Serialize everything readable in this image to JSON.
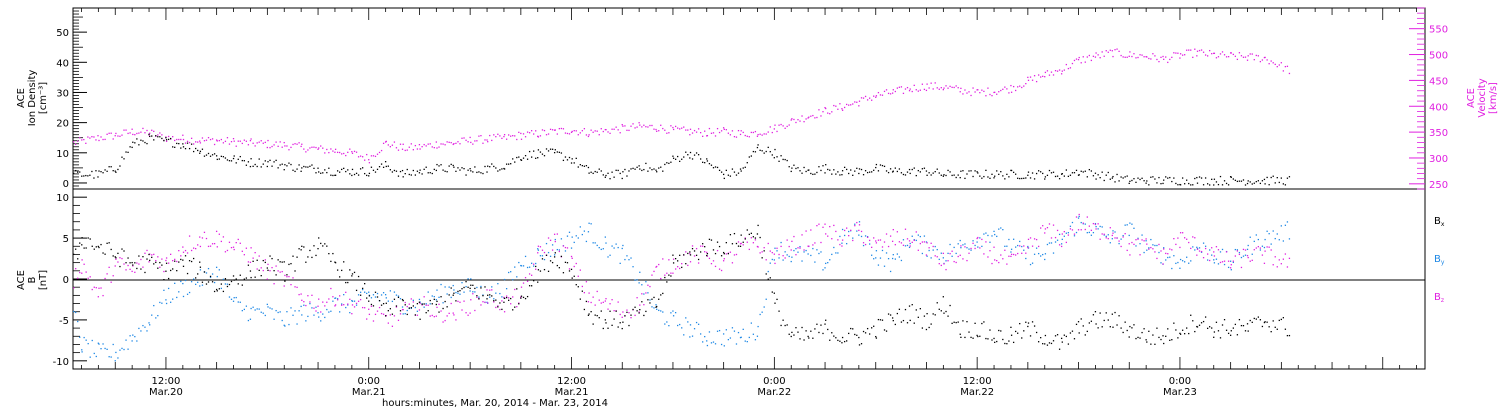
{
  "colors": {
    "density": "#000000",
    "velocity": "#e020e0",
    "bx": "#000000",
    "by": "#1e88e5",
    "bz": "#e020e0",
    "zeroline": "#000000"
  },
  "figure": {
    "xlabel": "hours:minutes, Mar. 20, 2014 - Mar. 23, 2014",
    "x_tick_labels": [
      {
        "time": "12:00",
        "date": "Mar.20",
        "hour": 12
      },
      {
        "time": "0:00",
        "date": "Mar.21",
        "hour": 24
      },
      {
        "time": "12:00",
        "date": "Mar.21",
        "hour": 36
      },
      {
        "time": "0:00",
        "date": "Mar.22",
        "hour": 48
      },
      {
        "time": "12:00",
        "date": "Mar.22",
        "hour": 60
      },
      {
        "time": "0:00",
        "date": "Mar.23",
        "hour": 72
      }
    ]
  },
  "chart_data": [
    {
      "type": "scatter",
      "panel": "top",
      "ylabel_left": [
        "ACE",
        "Ion Density",
        "[cm⁻³]"
      ],
      "ylabel_right": [
        "ACE",
        "Velocity",
        "[km/s]"
      ],
      "xlim_hours": [
        6.5,
        86.5
      ],
      "ylim_left": [
        -2,
        58
      ],
      "ylim_right": [
        240,
        590
      ],
      "y_ticks_left": [
        0,
        10,
        20,
        30,
        40,
        50
      ],
      "y_ticks_right": [
        250,
        300,
        350,
        400,
        450,
        500,
        550
      ],
      "series": [
        {
          "name": "density",
          "axis": "left",
          "x_hours": [
            6.5,
            8,
            9,
            10,
            11,
            12,
            13,
            14,
            15,
            16,
            17,
            18,
            19,
            20,
            21,
            22,
            23,
            24,
            25,
            26,
            27,
            28,
            29,
            30,
            31,
            32,
            33,
            34,
            35,
            36,
            37,
            38,
            39,
            40,
            41,
            42,
            43,
            44,
            45,
            46,
            47,
            48,
            49,
            50,
            51,
            52,
            53,
            54,
            55,
            56,
            57,
            58,
            59,
            60,
            61,
            62,
            63,
            64,
            65,
            66,
            67,
            68,
            69,
            70,
            71,
            72,
            73,
            74,
            75,
            76,
            77,
            78.5
          ],
          "values": [
            3,
            3,
            5,
            13,
            15,
            14,
            13,
            11,
            9,
            8,
            7,
            7,
            6,
            5,
            5,
            4,
            4,
            4,
            6,
            3,
            4,
            5,
            5,
            4,
            5,
            6,
            9,
            10,
            10,
            8,
            4,
            3,
            3,
            6,
            4,
            8,
            10,
            7,
            3,
            4,
            12,
            10,
            5,
            4,
            5,
            4,
            4,
            5,
            4,
            4,
            4,
            3,
            3,
            3,
            3,
            3,
            3,
            3,
            3,
            4,
            3,
            2,
            1,
            1,
            1,
            1,
            1,
            1,
            1,
            1,
            1,
            1
          ]
        },
        {
          "name": "velocity",
          "axis": "right",
          "x_hours": [
            6.5,
            8,
            9,
            10,
            11,
            12,
            13,
            14,
            15,
            16,
            17,
            18,
            19,
            20,
            21,
            22,
            23,
            24,
            25,
            26,
            27,
            28,
            29,
            30,
            31,
            32,
            33,
            34,
            35,
            36,
            37,
            38,
            39,
            40,
            41,
            42,
            43,
            44,
            45,
            46,
            47,
            48,
            49,
            50,
            51,
            52,
            53,
            54,
            55,
            56,
            57,
            58,
            59,
            60,
            61,
            62,
            63,
            64,
            65,
            66,
            67,
            68,
            69,
            70,
            71,
            72,
            73,
            74,
            75,
            76,
            77,
            78.5
          ],
          "values": [
            330,
            340,
            345,
            352,
            350,
            340,
            338,
            335,
            335,
            332,
            330,
            328,
            326,
            322,
            318,
            315,
            310,
            300,
            330,
            320,
            322,
            328,
            330,
            335,
            338,
            340,
            345,
            348,
            352,
            355,
            350,
            354,
            358,
            362,
            360,
            355,
            352,
            350,
            352,
            348,
            350,
            358,
            372,
            382,
            392,
            400,
            410,
            422,
            428,
            435,
            440,
            438,
            432,
            428,
            430,
            436,
            450,
            462,
            472,
            490,
            498,
            505,
            500,
            498,
            492,
            500,
            505,
            500,
            498,
            496,
            494,
            470
          ]
        }
      ]
    },
    {
      "type": "scatter",
      "panel": "bottom",
      "ylabel_left": [
        "ACE",
        "B",
        "[nT]"
      ],
      "xlim_hours": [
        6.5,
        86.5
      ],
      "ylim": [
        -11,
        11
      ],
      "y_ticks": [
        -10,
        -5,
        0,
        5,
        10
      ],
      "legend_placement": "right",
      "legend": [
        "Bx",
        "By",
        "Bz"
      ],
      "series": [
        {
          "name": "Bx",
          "x_hours": [
            6.5,
            7,
            8,
            9,
            10,
            11,
            12,
            13,
            14,
            15,
            16,
            17,
            18,
            19,
            20,
            21,
            22,
            23,
            24,
            25,
            26,
            27,
            28,
            29,
            30,
            31,
            32,
            33,
            34,
            35,
            36,
            37,
            38,
            39,
            40,
            41,
            42,
            43,
            44,
            45,
            46,
            47,
            48,
            49,
            50,
            51,
            52,
            53,
            54,
            55,
            56,
            57,
            58,
            59,
            60,
            61,
            62,
            63,
            64,
            65,
            66,
            67,
            68,
            69,
            70,
            71,
            72,
            73,
            74,
            75,
            76,
            77,
            78.5
          ],
          "values": [
            2,
            5,
            4,
            3,
            2,
            2,
            1,
            2,
            1,
            -1,
            0,
            1,
            2,
            1,
            3,
            4,
            2,
            0,
            -2,
            -4,
            -3,
            -4,
            -3,
            -2,
            -1,
            -2,
            -3,
            -2,
            1,
            3,
            1,
            -4,
            -5,
            -5,
            -4,
            -3,
            2,
            3,
            4,
            4,
            5,
            6,
            -3,
            -7,
            -7,
            -6,
            -7,
            -7,
            -6,
            -5,
            -4,
            -5,
            -3,
            -6,
            -6,
            -7,
            -7,
            -6,
            -7,
            -8,
            -6,
            -5,
            -5,
            -6,
            -7,
            -7,
            -6,
            -5,
            -6,
            -6,
            -6,
            -5,
            -6
          ]
        },
        {
          "name": "By",
          "x_hours": [
            6.5,
            7,
            8,
            9,
            10,
            11,
            12,
            13,
            14,
            15,
            16,
            17,
            18,
            19,
            20,
            21,
            22,
            23,
            24,
            25,
            26,
            27,
            28,
            29,
            30,
            31,
            32,
            33,
            34,
            35,
            36,
            37,
            38,
            39,
            40,
            41,
            42,
            43,
            44,
            45,
            46,
            47,
            48,
            49,
            50,
            51,
            52,
            53,
            54,
            55,
            56,
            57,
            58,
            59,
            60,
            61,
            62,
            63,
            64,
            65,
            66,
            67,
            68,
            69,
            70,
            71,
            72,
            73,
            74,
            75,
            76,
            77,
            78.5
          ],
          "values": [
            -4,
            -8,
            -9,
            -9,
            -7,
            -5,
            -2,
            -1,
            0,
            1,
            -3,
            -4,
            -4,
            -5,
            -4,
            -4,
            -3,
            -3,
            -2,
            -2,
            -3,
            -3,
            -2,
            -1,
            -1,
            -2,
            -1,
            2,
            3,
            4,
            5,
            6,
            4,
            3,
            0,
            -4,
            -5,
            -6,
            -7,
            -7,
            -7,
            -6,
            4,
            3,
            3,
            2,
            5,
            6,
            3,
            2,
            5,
            4,
            3,
            4,
            5,
            6,
            4,
            3,
            3,
            5,
            7,
            6,
            5,
            6,
            4,
            3,
            2,
            4,
            3,
            2,
            4,
            5,
            6
          ]
        },
        {
          "name": "Bz",
          "x_hours": [
            6.5,
            7,
            8,
            9,
            10,
            11,
            12,
            13,
            14,
            15,
            16,
            17,
            18,
            19,
            20,
            21,
            22,
            23,
            24,
            25,
            26,
            27,
            28,
            29,
            30,
            31,
            32,
            33,
            34,
            35,
            36,
            37,
            38,
            39,
            40,
            41,
            42,
            43,
            44,
            45,
            46,
            47,
            48,
            49,
            50,
            51,
            52,
            53,
            54,
            55,
            56,
            57,
            58,
            59,
            60,
            61,
            62,
            63,
            64,
            65,
            66,
            67,
            68,
            69,
            70,
            71,
            72,
            73,
            74,
            75,
            76,
            77,
            78.5
          ],
          "values": [
            0,
            2,
            -2,
            2,
            1,
            3,
            2,
            4,
            5,
            5,
            4,
            3,
            1,
            0,
            -2,
            -3,
            -2,
            -3,
            -4,
            -5,
            -4,
            -3,
            -4,
            -4,
            -3,
            -2,
            -3,
            -2,
            3,
            5,
            2,
            -2,
            -3,
            -4,
            -3,
            1,
            2,
            3,
            3,
            2,
            4,
            4,
            3,
            4,
            5,
            6,
            5,
            6,
            4,
            5,
            5,
            4,
            2,
            3,
            4,
            3,
            2,
            4,
            6,
            5,
            7,
            6,
            6,
            4,
            4,
            3,
            5,
            4,
            3,
            2,
            3,
            3,
            2
          ]
        }
      ]
    }
  ]
}
